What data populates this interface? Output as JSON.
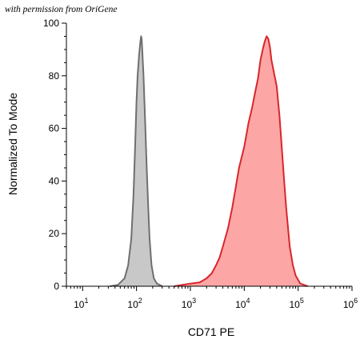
{
  "watermark": "with permission from OriGene",
  "chart_data": {
    "type": "area",
    "xlabel": "CD71 PE",
    "ylabel": "Normalized To Mode",
    "x_scale": "log",
    "xlim": [
      5,
      1000000
    ],
    "ylim": [
      0,
      100
    ],
    "x_ticks": [
      {
        "value": 10,
        "base": "10",
        "exp": "1"
      },
      {
        "value": 100,
        "base": "10",
        "exp": "2"
      },
      {
        "value": 1000,
        "base": "10",
        "exp": "3"
      },
      {
        "value": 10000,
        "base": "10",
        "exp": "4"
      },
      {
        "value": 100000,
        "base": "10",
        "exp": "5"
      },
      {
        "value": 1000000,
        "base": "10",
        "exp": "6"
      }
    ],
    "y_ticks": [
      0,
      20,
      40,
      60,
      80,
      100
    ],
    "grid": false,
    "series": [
      {
        "fill": "#c8c8c8",
        "stroke": "#6f6f6f",
        "points": [
          [
            32,
            0
          ],
          [
            45,
            0.5
          ],
          [
            60,
            3
          ],
          [
            70,
            8
          ],
          [
            80,
            18
          ],
          [
            88,
            35
          ],
          [
            95,
            55
          ],
          [
            100,
            70
          ],
          [
            105,
            80
          ],
          [
            112,
            88
          ],
          [
            118,
            93
          ],
          [
            122,
            95
          ],
          [
            125,
            94
          ],
          [
            128,
            90
          ],
          [
            135,
            80
          ],
          [
            145,
            62
          ],
          [
            155,
            45
          ],
          [
            165,
            30
          ],
          [
            175,
            18
          ],
          [
            190,
            8
          ],
          [
            210,
            3
          ],
          [
            240,
            1
          ],
          [
            300,
            0
          ]
        ]
      },
      {
        "fill": "#fda6a6",
        "stroke": "#d9262c",
        "points": [
          [
            500,
            0
          ],
          [
            700,
            0.5
          ],
          [
            1000,
            1
          ],
          [
            1500,
            1.5
          ],
          [
            2000,
            3
          ],
          [
            2500,
            5
          ],
          [
            3000,
            8
          ],
          [
            3500,
            11
          ],
          [
            4000,
            15
          ],
          [
            5000,
            22
          ],
          [
            6000,
            30
          ],
          [
            7000,
            38
          ],
          [
            8000,
            45
          ],
          [
            10000,
            53
          ],
          [
            12000,
            62
          ],
          [
            14000,
            68
          ],
          [
            16000,
            74
          ],
          [
            18000,
            79
          ],
          [
            20000,
            86
          ],
          [
            22000,
            90
          ],
          [
            24000,
            93
          ],
          [
            26000,
            95
          ],
          [
            28000,
            94
          ],
          [
            30000,
            91
          ],
          [
            32000,
            86
          ],
          [
            35000,
            82
          ],
          [
            40000,
            76
          ],
          [
            45000,
            65
          ],
          [
            50000,
            52
          ],
          [
            55000,
            40
          ],
          [
            60000,
            30
          ],
          [
            65000,
            22
          ],
          [
            70000,
            15
          ],
          [
            80000,
            8
          ],
          [
            90000,
            4
          ],
          [
            110000,
            1
          ],
          [
            150000,
            0
          ]
        ]
      }
    ]
  }
}
